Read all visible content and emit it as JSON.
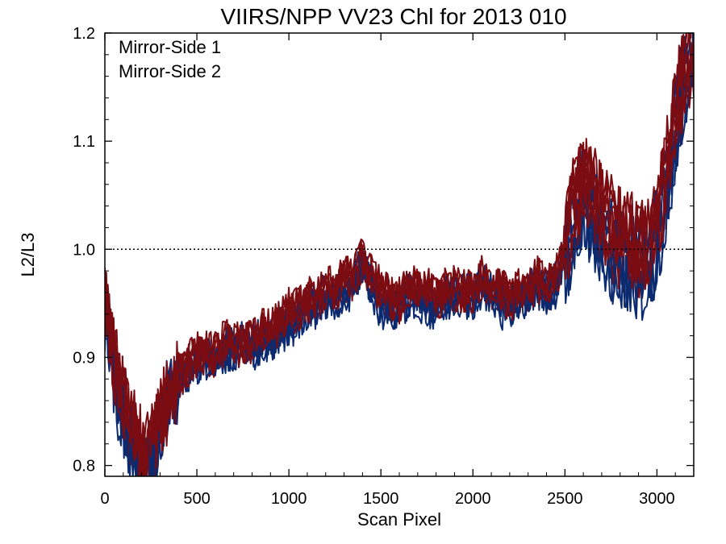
{
  "chart_data": {
    "type": "line",
    "title": "VIIRS/NPP VV23 Chl for 2013 010",
    "xlabel": "Scan Pixel",
    "ylabel": "L2/L3",
    "xlim": [
      0,
      3200
    ],
    "ylim": [
      0.79,
      1.2
    ],
    "xticks": [
      "0",
      "500",
      "1000",
      "1500",
      "2000",
      "2500",
      "3000"
    ],
    "yticks": [
      "0.8",
      "0.9",
      "1.0",
      "1.1",
      "1.2"
    ],
    "grid": false,
    "legend_position": "top-left",
    "reference_line": {
      "y": 1.0,
      "style": "dotted"
    },
    "series": [
      {
        "name": "Mirror-Side 1",
        "color": "#0b2a6f",
        "x": [
          0,
          50,
          100,
          150,
          200,
          250,
          300,
          350,
          400,
          450,
          500,
          550,
          600,
          650,
          700,
          750,
          800,
          850,
          900,
          950,
          1000,
          1050,
          1100,
          1150,
          1200,
          1250,
          1300,
          1350,
          1400,
          1450,
          1500,
          1550,
          1600,
          1650,
          1700,
          1750,
          1800,
          1850,
          1900,
          1950,
          2000,
          2050,
          2100,
          2150,
          2200,
          2250,
          2300,
          2350,
          2400,
          2450,
          2500,
          2550,
          2600,
          2650,
          2700,
          2750,
          2800,
          2850,
          2900,
          2950,
          3000,
          3050,
          3100,
          3150,
          3200
        ],
        "values": [
          0.95,
          0.88,
          0.85,
          0.82,
          0.8,
          0.81,
          0.84,
          0.87,
          0.88,
          0.89,
          0.9,
          0.9,
          0.9,
          0.91,
          0.91,
          0.92,
          0.91,
          0.92,
          0.92,
          0.93,
          0.93,
          0.94,
          0.95,
          0.95,
          0.96,
          0.96,
          0.96,
          0.97,
          0.99,
          0.97,
          0.95,
          0.95,
          0.95,
          0.96,
          0.96,
          0.95,
          0.95,
          0.96,
          0.96,
          0.96,
          0.96,
          0.97,
          0.96,
          0.95,
          0.95,
          0.96,
          0.96,
          0.97,
          0.96,
          0.97,
          1.0,
          1.04,
          1.06,
          1.04,
          1.02,
          1.01,
          1.0,
          1.0,
          0.99,
          0.99,
          1.02,
          1.06,
          1.12,
          1.17,
          1.19
        ]
      },
      {
        "name": "Mirror-Side 2",
        "color": "#7b0c12",
        "x": [
          0,
          50,
          100,
          150,
          200,
          250,
          300,
          350,
          400,
          450,
          500,
          550,
          600,
          650,
          700,
          750,
          800,
          850,
          900,
          950,
          1000,
          1050,
          1100,
          1150,
          1200,
          1250,
          1300,
          1350,
          1400,
          1450,
          1500,
          1550,
          1600,
          1650,
          1700,
          1750,
          1800,
          1850,
          1900,
          1950,
          2000,
          2050,
          2100,
          2150,
          2200,
          2250,
          2300,
          2350,
          2400,
          2450,
          2500,
          2550,
          2600,
          2650,
          2700,
          2750,
          2800,
          2850,
          2900,
          2950,
          3000,
          3050,
          3100,
          3150,
          3200
        ],
        "values": [
          0.96,
          0.89,
          0.86,
          0.83,
          0.81,
          0.81,
          0.84,
          0.86,
          0.88,
          0.89,
          0.9,
          0.9,
          0.9,
          0.91,
          0.91,
          0.91,
          0.91,
          0.92,
          0.92,
          0.93,
          0.94,
          0.94,
          0.95,
          0.95,
          0.96,
          0.96,
          0.97,
          0.97,
          0.99,
          0.97,
          0.96,
          0.95,
          0.95,
          0.96,
          0.96,
          0.96,
          0.95,
          0.96,
          0.96,
          0.96,
          0.96,
          0.97,
          0.96,
          0.96,
          0.95,
          0.96,
          0.96,
          0.97,
          0.96,
          0.97,
          1.0,
          1.03,
          1.05,
          1.04,
          1.02,
          1.01,
          1.0,
          1.0,
          0.99,
          0.99,
          1.02,
          1.06,
          1.11,
          1.16,
          1.18
        ]
      }
    ]
  }
}
